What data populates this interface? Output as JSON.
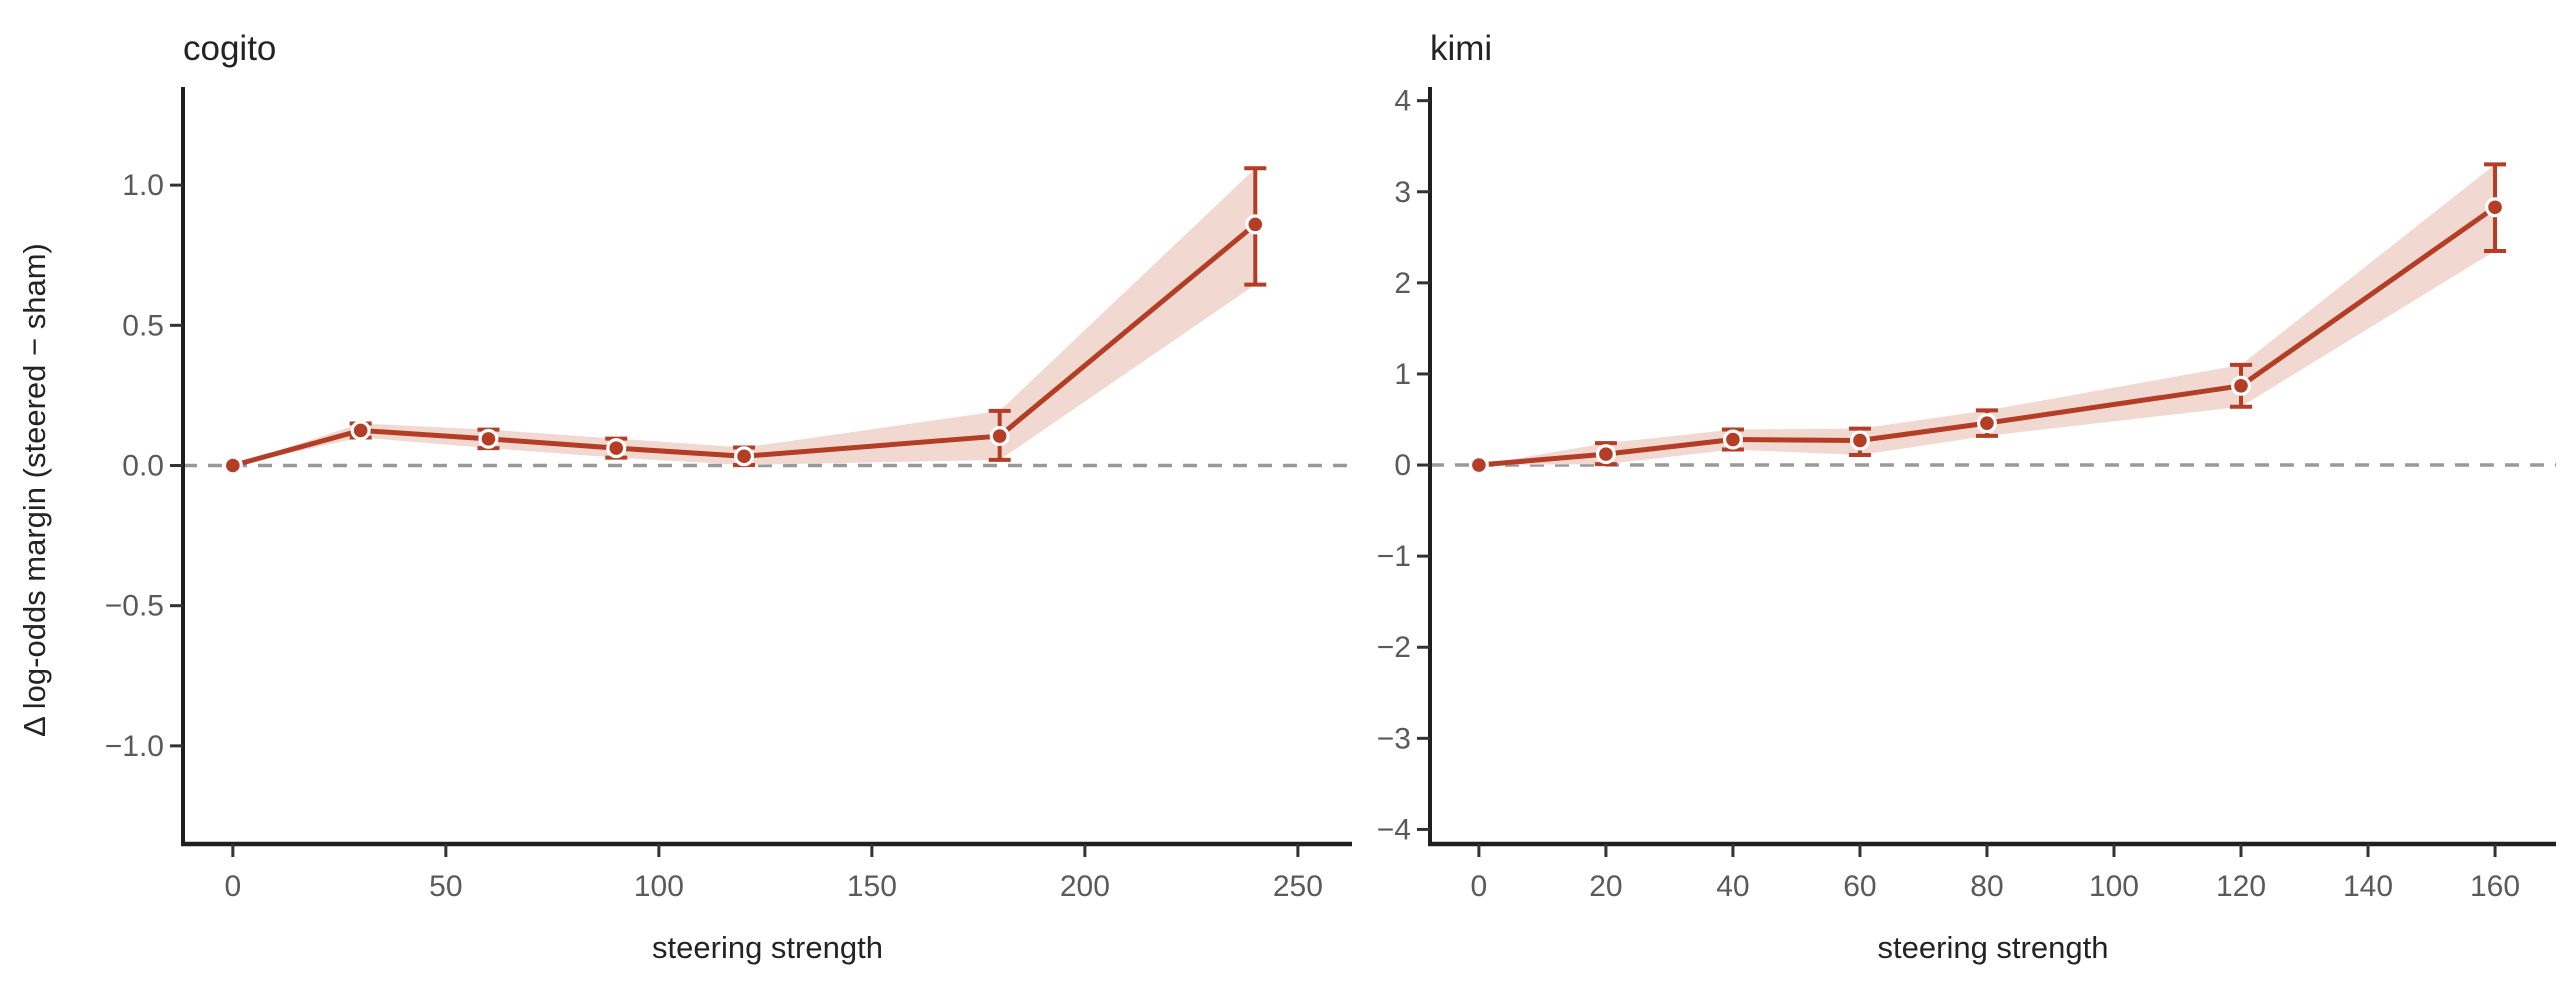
{
  "figure": {
    "background": "#ffffff"
  },
  "colors": {
    "line": "#b43d26",
    "band": "#f1d9d2",
    "marker_fill": "#b43d26",
    "marker_edge": "#ffffff",
    "zero_line": "#999999",
    "spine": "#1f1f1f",
    "tick_mark": "#333333",
    "tick_label": "#5a5a5a",
    "text": "#232323"
  },
  "chart_data": [
    {
      "type": "line",
      "title": "cogito",
      "xlabel": "steering strength",
      "ylabel": "Δ log-odds margin (steered − sham)",
      "x": [
        0,
        30,
        60,
        90,
        120,
        180,
        240
      ],
      "series": [
        {
          "name": "steered − sham",
          "values": [
            0,
            0.125,
            0.095,
            0.062,
            0.033,
            0.105,
            0.86
          ],
          "ci_low": [
            0,
            0.1,
            0.062,
            0.028,
            0.002,
            0.02,
            0.645
          ],
          "ci_high": [
            0,
            0.15,
            0.128,
            0.096,
            0.064,
            0.195,
            1.06
          ]
        }
      ],
      "xticks": {
        "values": [
          0,
          50,
          100,
          150,
          200,
          250
        ],
        "labels": [
          "0",
          "50",
          "100",
          "150",
          "200",
          "250"
        ]
      },
      "yticks": {
        "values": [
          1.0,
          0.5,
          0.0,
          -0.5,
          -1.0
        ],
        "labels": [
          "1.0",
          "0.5",
          "0.0",
          "−0.5",
          "−1.0"
        ]
      },
      "xlim": [
        -11.7,
        262.7
      ],
      "ylim": [
        -1.35,
        1.35
      ],
      "zero_line": true,
      "grid": false,
      "legend": null
    },
    {
      "type": "line",
      "title": "kimi",
      "xlabel": "steering strength",
      "ylabel": null,
      "x": [
        0,
        20,
        40,
        60,
        80,
        120,
        160
      ],
      "series": [
        {
          "name": "steered − sham",
          "values": [
            0,
            0.12,
            0.28,
            0.27,
            0.46,
            0.87,
            2.83
          ],
          "ci_low": [
            0,
            0.01,
            0.17,
            0.11,
            0.32,
            0.64,
            2.35
          ],
          "ci_high": [
            0,
            0.24,
            0.39,
            0.4,
            0.6,
            1.1,
            3.3
          ]
        }
      ],
      "xticks": {
        "values": [
          0,
          20,
          40,
          60,
          80,
          100,
          120,
          140,
          160
        ],
        "labels": [
          "0",
          "20",
          "40",
          "60",
          "80",
          "100",
          "120",
          "140",
          "160"
        ]
      },
      "yticks": {
        "values": [
          4,
          3,
          2,
          1,
          0,
          -1,
          -2,
          -3,
          -4
        ],
        "labels": [
          "4",
          "3",
          "2",
          "1",
          "0",
          "−1",
          "−2",
          "−3",
          "−4"
        ]
      },
      "xlim": [
        -7.7,
        169.6
      ],
      "ylim": [
        -4.16,
        4.15
      ],
      "zero_line": true,
      "grid": false,
      "legend": null
    }
  ]
}
